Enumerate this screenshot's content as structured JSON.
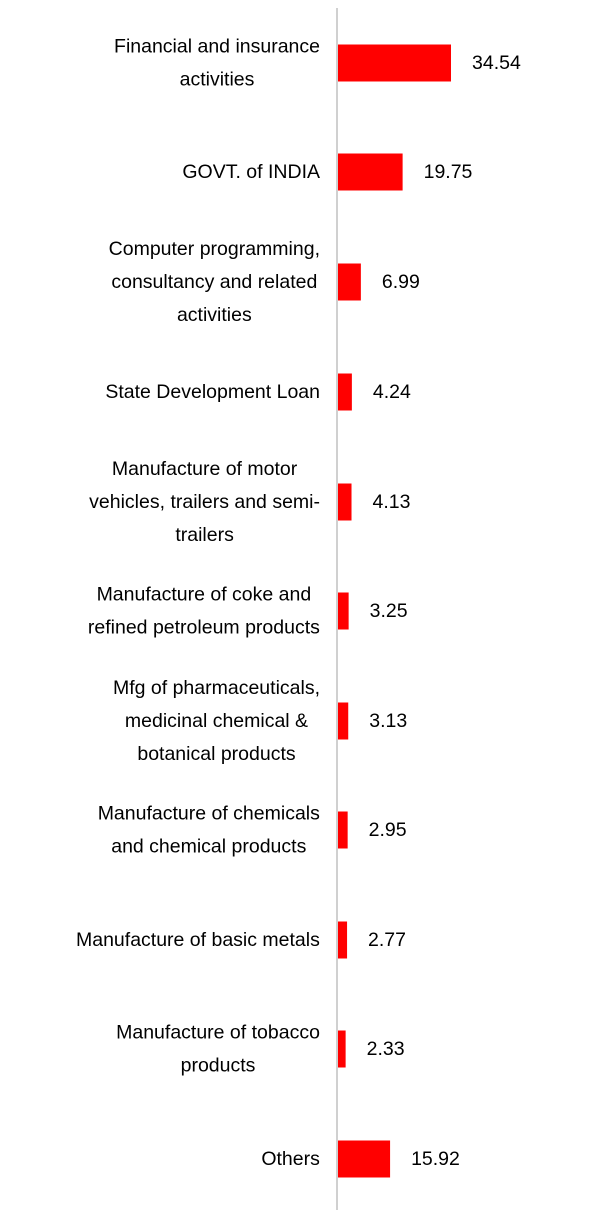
{
  "chart_data": {
    "type": "bar",
    "orientation": "horizontal",
    "categories": [
      [
        "Financial and insurance",
        "activities"
      ],
      [
        "GOVT. of INDIA"
      ],
      [
        "Computer programming,",
        "consultancy and related",
        "activities"
      ],
      [
        "State Development Loan"
      ],
      [
        "Manufacture of motor",
        "vehicles, trailers and semi-",
        "trailers"
      ],
      [
        "Manufacture of coke and",
        "refined petroleum products"
      ],
      [
        "Mfg of pharmaceuticals,",
        "medicinal chemical &",
        "botanical products"
      ],
      [
        "Manufacture of chemicals",
        "and chemical products"
      ],
      [
        "Manufacture of basic metals"
      ],
      [
        "Manufacture of tobacco",
        "products"
      ],
      [
        "Others"
      ]
    ],
    "values": [
      34.54,
      19.75,
      6.99,
      4.24,
      4.13,
      3.25,
      3.13,
      2.95,
      2.77,
      2.33,
      15.92
    ],
    "value_labels": [
      "34.54",
      "19.75",
      "6.99",
      "4.24",
      "4.13",
      "3.25",
      "3.13",
      "2.95",
      "2.77",
      "2.33",
      "15.92"
    ],
    "bar_color": "#ff0000",
    "axis_color": "#d0d0d0",
    "title": "",
    "xlabel": "",
    "ylabel": "",
    "grid": false,
    "legend": "none"
  }
}
